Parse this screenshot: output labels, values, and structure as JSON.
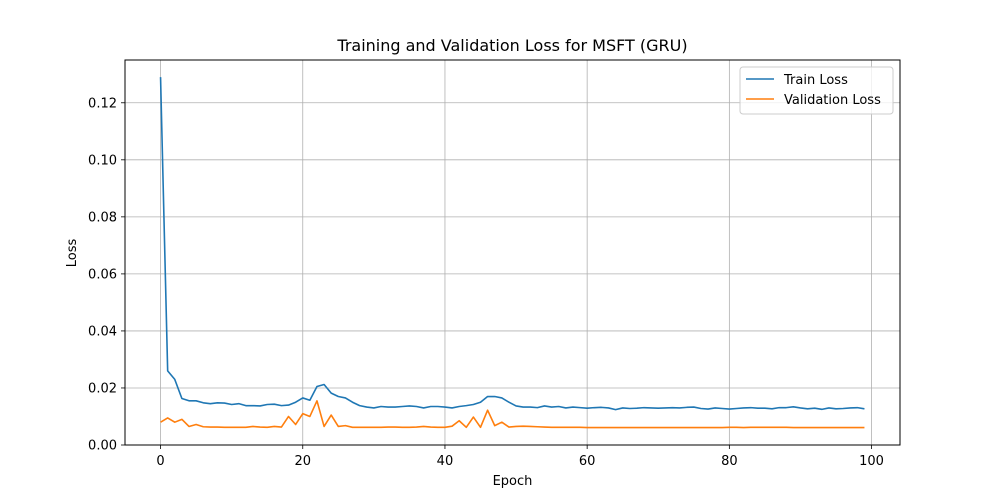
{
  "chart_data": {
    "type": "line",
    "title": "Training and Validation Loss for MSFT (GRU)",
    "xlabel": "Epoch",
    "ylabel": "Loss",
    "xlim": [
      -5,
      104
    ],
    "ylim": [
      0,
      0.135
    ],
    "xticks": [
      0,
      20,
      40,
      60,
      80,
      100
    ],
    "xtick_labels": [
      "0",
      "20",
      "40",
      "60",
      "80",
      "100"
    ],
    "yticks": [
      0.0,
      0.02,
      0.04,
      0.06,
      0.08,
      0.1,
      0.12
    ],
    "ytick_labels": [
      "0.00",
      "0.02",
      "0.04",
      "0.06",
      "0.08",
      "0.10",
      "0.12"
    ],
    "grid": true,
    "legend_position": "top-right",
    "series": [
      {
        "name": "Train Loss",
        "color": "#1f77b4",
        "values": [
          0.129,
          0.026,
          0.023,
          0.0163,
          0.0155,
          0.0155,
          0.0148,
          0.0145,
          0.0148,
          0.0147,
          0.0142,
          0.0145,
          0.0138,
          0.0138,
          0.0137,
          0.0142,
          0.0143,
          0.0138,
          0.014,
          0.015,
          0.0165,
          0.0157,
          0.0205,
          0.0212,
          0.0182,
          0.017,
          0.0165,
          0.015,
          0.0138,
          0.0133,
          0.013,
          0.0135,
          0.0133,
          0.0133,
          0.0135,
          0.0137,
          0.0135,
          0.013,
          0.0135,
          0.0135,
          0.0133,
          0.013,
          0.0135,
          0.0138,
          0.0142,
          0.015,
          0.017,
          0.017,
          0.0165,
          0.015,
          0.0137,
          0.0133,
          0.0133,
          0.0131,
          0.0137,
          0.0133,
          0.0135,
          0.013,
          0.0133,
          0.0131,
          0.0129,
          0.0131,
          0.0132,
          0.013,
          0.0124,
          0.013,
          0.0128,
          0.0129,
          0.0131,
          0.013,
          0.0129,
          0.013,
          0.0131,
          0.013,
          0.0132,
          0.0133,
          0.0128,
          0.0126,
          0.013,
          0.0128,
          0.0126,
          0.0128,
          0.013,
          0.0131,
          0.0129,
          0.0129,
          0.0127,
          0.0131,
          0.0131,
          0.0134,
          0.013,
          0.0127,
          0.0129,
          0.0125,
          0.013,
          0.0127,
          0.0128,
          0.013,
          0.0131,
          0.0127
        ]
      },
      {
        "name": "Validation Loss",
        "color": "#ff7f0e",
        "values": [
          0.008,
          0.0095,
          0.008,
          0.009,
          0.0065,
          0.0072,
          0.0064,
          0.0063,
          0.0063,
          0.0062,
          0.0062,
          0.0062,
          0.0062,
          0.0065,
          0.0063,
          0.0062,
          0.0065,
          0.0063,
          0.01,
          0.0072,
          0.011,
          0.01,
          0.0155,
          0.0065,
          0.0105,
          0.0065,
          0.0068,
          0.0062,
          0.0062,
          0.0062,
          0.0062,
          0.0062,
          0.0063,
          0.0063,
          0.0062,
          0.0062,
          0.0063,
          0.0065,
          0.0063,
          0.0062,
          0.0062,
          0.0066,
          0.0085,
          0.0062,
          0.0098,
          0.0062,
          0.0122,
          0.0068,
          0.008,
          0.0063,
          0.0065,
          0.0066,
          0.0065,
          0.0064,
          0.0063,
          0.0062,
          0.0062,
          0.0062,
          0.0062,
          0.0062,
          0.0061,
          0.0061,
          0.0061,
          0.0061,
          0.0061,
          0.0061,
          0.0061,
          0.0061,
          0.0061,
          0.0061,
          0.0061,
          0.0061,
          0.0061,
          0.0061,
          0.0061,
          0.0061,
          0.0061,
          0.0061,
          0.0061,
          0.0061,
          0.0062,
          0.0062,
          0.0061,
          0.0062,
          0.0062,
          0.0062,
          0.0062,
          0.0062,
          0.0062,
          0.0061,
          0.0061,
          0.0061,
          0.0061,
          0.0061,
          0.0061,
          0.0061,
          0.0061,
          0.0061,
          0.0061,
          0.0061
        ]
      }
    ]
  }
}
